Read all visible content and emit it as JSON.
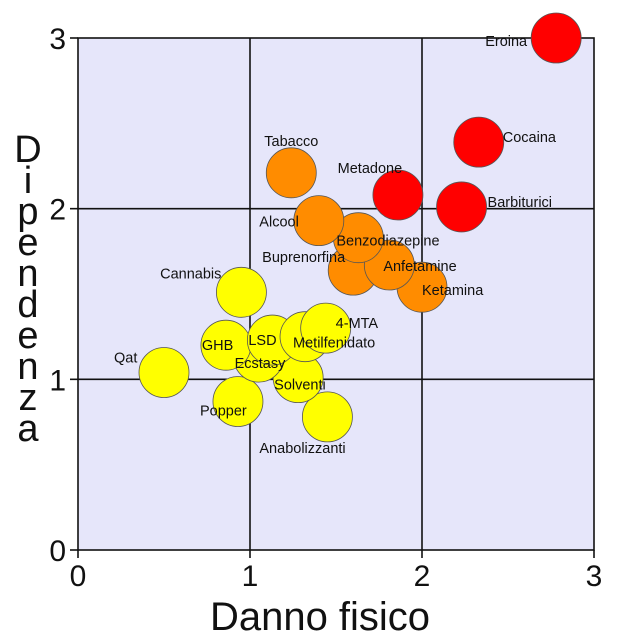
{
  "chart_data": {
    "type": "scatter",
    "xlabel": "Danno fisico",
    "ylabel": "Dipendenza",
    "xlim": [
      0,
      3
    ],
    "ylim": [
      0,
      3
    ],
    "x_ticks": [
      "0",
      "1",
      "2",
      "3"
    ],
    "y_ticks": [
      "0",
      "1",
      "2",
      "3"
    ],
    "grid": true,
    "colors": {
      "red": "#ff0000",
      "orange": "#ff8c00",
      "yellow": "#ffff00",
      "background": "#e6e6fa"
    },
    "points": [
      {
        "label": "Eroina",
        "x": 2.78,
        "y": 3.0,
        "color": "red"
      },
      {
        "label": "Cocaina",
        "x": 2.33,
        "y": 2.39,
        "color": "red"
      },
      {
        "label": "Barbiturici",
        "x": 2.23,
        "y": 2.01,
        "color": "red"
      },
      {
        "label": "Metadone",
        "x": 1.86,
        "y": 2.08,
        "color": "red"
      },
      {
        "label": "Alcool",
        "x": 1.4,
        "y": 1.93,
        "color": "orange"
      },
      {
        "label": "Ketamina",
        "x": 2.0,
        "y": 1.54,
        "color": "orange"
      },
      {
        "label": "Benzodiazepine",
        "x": 1.63,
        "y": 1.83,
        "color": "orange"
      },
      {
        "label": "Anfetamine",
        "x": 1.81,
        "y": 1.67,
        "color": "orange"
      },
      {
        "label": "Tabacco",
        "x": 1.24,
        "y": 2.21,
        "color": "orange"
      },
      {
        "label": "Buprenorfina",
        "x": 1.6,
        "y": 1.64,
        "color": "orange"
      },
      {
        "label": "Cannabis",
        "x": 0.95,
        "y": 1.51,
        "color": "yellow"
      },
      {
        "label": "Solventi",
        "x": 1.28,
        "y": 1.01,
        "color": "yellow"
      },
      {
        "label": "4-MTA",
        "x": 1.44,
        "y": 1.3,
        "color": "yellow"
      },
      {
        "label": "LSD",
        "x": 1.13,
        "y": 1.23,
        "color": "yellow"
      },
      {
        "label": "Metilfenidato",
        "x": 1.32,
        "y": 1.25,
        "color": "yellow"
      },
      {
        "label": "Anabolizzanti",
        "x": 1.45,
        "y": 0.78,
        "color": "yellow"
      },
      {
        "label": "GHB",
        "x": 0.86,
        "y": 1.2,
        "color": "yellow"
      },
      {
        "label": "Ecstasy",
        "x": 1.05,
        "y": 1.13,
        "color": "yellow"
      },
      {
        "label": "Qat",
        "x": 0.5,
        "y": 1.04,
        "color": "yellow"
      },
      {
        "label": "Popper",
        "x": 0.93,
        "y": 0.87,
        "color": "yellow"
      }
    ]
  }
}
